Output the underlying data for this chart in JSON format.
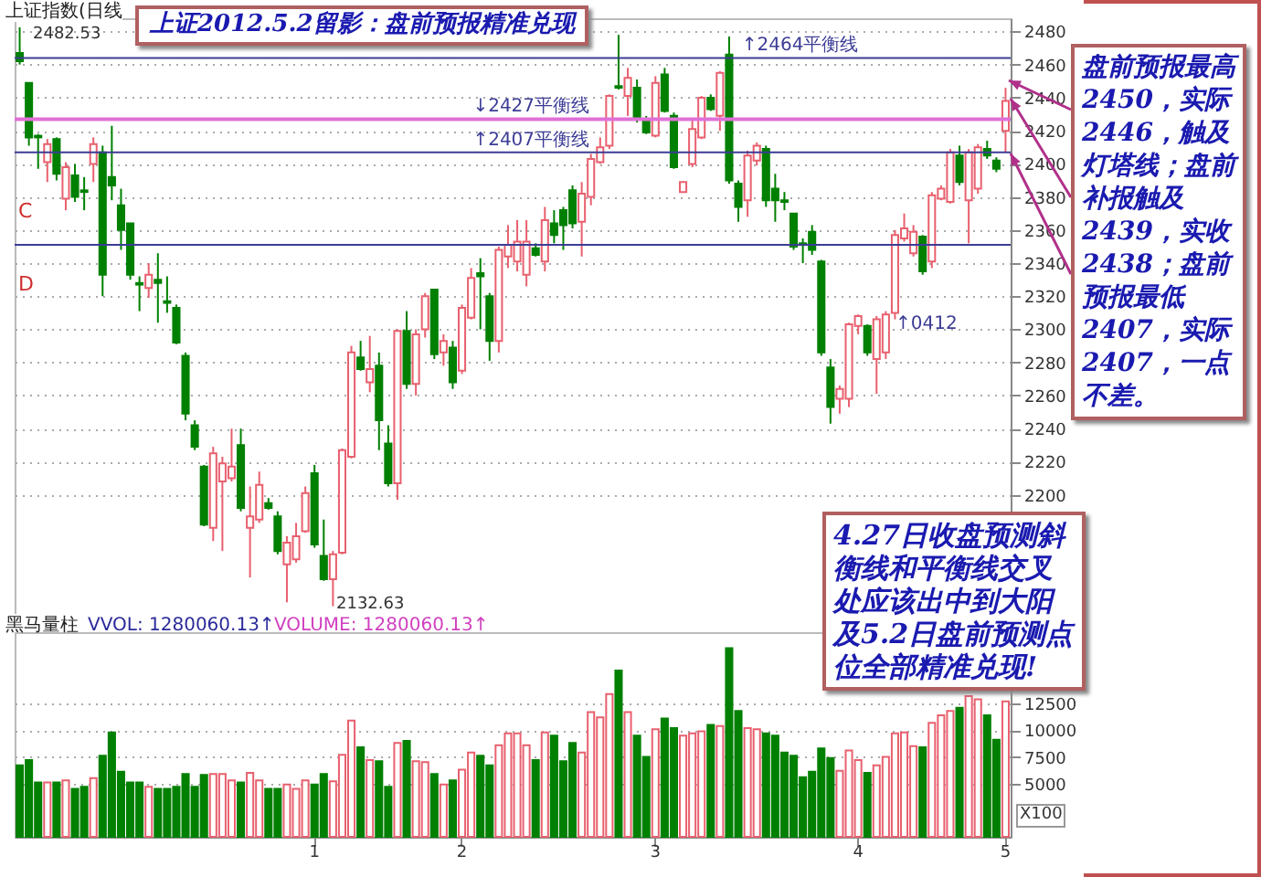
{
  "chart_data": [
    {
      "type": "candlestick",
      "title": "上证2012.5.2留影：盘前预报精准兑现",
      "subtitle": "上证指数(日线",
      "categories": [
        null,
        null,
        null,
        null,
        null,
        null,
        null,
        null,
        null,
        null,
        null,
        null,
        null,
        null,
        null,
        null,
        null,
        null,
        null,
        null,
        null,
        null,
        null,
        null,
        null,
        null,
        null,
        null,
        null,
        null,
        null,
        null,
        "1",
        null,
        null,
        null,
        null,
        null,
        null,
        null,
        null,
        null,
        null,
        null,
        null,
        null,
        null,
        null,
        "2",
        null,
        null,
        null,
        null,
        null,
        null,
        null,
        null,
        null,
        null,
        null,
        null,
        null,
        null,
        null,
        null,
        null,
        null,
        null,
        null,
        "3",
        null,
        null,
        null,
        null,
        null,
        null,
        null,
        null,
        null,
        null,
        null,
        null,
        null,
        null,
        null,
        null,
        null,
        null,
        null,
        null,
        null,
        "4",
        null,
        null,
        null,
        null,
        null,
        null,
        null,
        null,
        null,
        null,
        null,
        null,
        null,
        null,
        null,
        "5"
      ],
      "ohlc": [
        [
          2467,
          2482.53,
          2460,
          2462
        ],
        [
          2449,
          2449,
          2411,
          2416
        ],
        [
          2417,
          2418,
          2397,
          2416
        ],
        [
          2401,
          2415,
          2389,
          2412
        ],
        [
          2415,
          2416,
          2390,
          2394
        ],
        [
          2379,
          2401,
          2372,
          2398
        ],
        [
          2393,
          2400,
          2377,
          2380
        ],
        [
          2384,
          2392,
          2372,
          2383
        ],
        [
          2400,
          2416,
          2389,
          2412
        ],
        [
          2407,
          2411,
          2320,
          2333
        ],
        [
          2392,
          2423,
          2378,
          2387
        ],
        [
          2375,
          2385,
          2348,
          2360
        ],
        [
          2364,
          2364,
          2330,
          2333
        ],
        [
          2328,
          2332,
          2311,
          2327
        ],
        [
          2325,
          2340,
          2319,
          2333
        ],
        [
          2330,
          2346,
          2304,
          2328
        ],
        [
          2317,
          2332,
          2310,
          2316
        ],
        [
          2313,
          2315,
          2291,
          2292
        ],
        [
          2284,
          2286,
          2245,
          2249
        ],
        [
          2242,
          2245,
          2227,
          2229
        ],
        [
          2217,
          2218,
          2181,
          2182
        ],
        [
          2180,
          2229,
          2172,
          2225
        ],
        [
          2208,
          2223,
          2166,
          2219
        ],
        [
          2210,
          2240,
          2208,
          2217
        ],
        [
          2230,
          2240,
          2190,
          2192
        ],
        [
          2180,
          2205,
          2150,
          2187
        ],
        [
          2185,
          2214,
          2183,
          2206
        ],
        [
          2195,
          2198,
          2191,
          2192
        ],
        [
          2187,
          2190,
          2164,
          2166
        ],
        [
          2158,
          2175,
          2135,
          2171
        ],
        [
          2161,
          2183,
          2159,
          2175
        ],
        [
          2178,
          2205,
          2177,
          2201
        ],
        [
          2213,
          2218,
          2168,
          2170
        ],
        [
          2163,
          2185,
          2148,
          2149
        ],
        [
          2149,
          2166,
          2132.63,
          2164
        ],
        [
          2165,
          2228,
          2164,
          2227
        ],
        [
          2223,
          2290,
          2222,
          2286
        ],
        [
          2283,
          2293,
          2275,
          2276
        ],
        [
          2268,
          2296,
          2262,
          2276
        ],
        [
          2278,
          2286,
          2227,
          2245
        ],
        [
          2231,
          2242,
          2205,
          2207
        ],
        [
          2207,
          2300,
          2197,
          2299
        ],
        [
          2299,
          2311,
          2264,
          2267
        ],
        [
          2267,
          2300,
          2260,
          2297
        ],
        [
          2300,
          2322,
          2295,
          2320
        ],
        [
          2324,
          2324,
          2282,
          2285
        ],
        [
          2286,
          2297,
          2278,
          2293
        ],
        [
          2289,
          2293,
          2264,
          2268
        ],
        [
          2275,
          2315,
          2273,
          2313
        ],
        [
          2307,
          2337,
          2306,
          2331
        ],
        [
          2334,
          2343,
          2300,
          2332
        ],
        [
          2320,
          2322,
          2281,
          2293
        ],
        [
          2293,
          2350,
          2286,
          2348
        ],
        [
          2344,
          2363,
          2337,
          2351
        ],
        [
          2341,
          2366,
          2335,
          2353
        ],
        [
          2333,
          2366,
          2326,
          2353
        ],
        [
          2349,
          2352,
          2344,
          2345
        ],
        [
          2341,
          2374,
          2335,
          2366
        ],
        [
          2364,
          2372,
          2352,
          2357
        ],
        [
          2372,
          2374,
          2348,
          2363
        ],
        [
          2384,
          2387,
          2361,
          2364
        ],
        [
          2365,
          2389,
          2344,
          2382
        ],
        [
          2380,
          2406,
          2375,
          2403
        ],
        [
          2401,
          2416,
          2400,
          2410
        ],
        [
          2411,
          2442,
          2409,
          2441
        ],
        [
          2447,
          2478,
          2445,
          2446
        ],
        [
          2441,
          2458,
          2429,
          2452
        ],
        [
          2446,
          2451,
          2425,
          2427
        ],
        [
          2427,
          2429,
          2418,
          2419
        ],
        [
          2417,
          2453,
          2416,
          2449
        ],
        [
          2454,
          2458,
          2431,
          2432
        ],
        [
          2429,
          2431,
          2397,
          2398
        ],
        [
          2383,
          2389,
          2383,
          2389
        ],
        [
          2400,
          2427,
          2398,
          2421
        ],
        [
          2416,
          2441,
          2415,
          2440
        ],
        [
          2440,
          2442,
          2432,
          2433
        ],
        [
          2429,
          2456,
          2420,
          2455
        ],
        [
          2466,
          2477,
          2388,
          2390
        ],
        [
          2388,
          2390,
          2365,
          2374
        ],
        [
          2378,
          2408,
          2368,
          2405
        ],
        [
          2402,
          2413,
          2399,
          2411
        ],
        [
          2409,
          2411,
          2374,
          2378
        ],
        [
          2385,
          2394,
          2365,
          2378
        ],
        [
          2378,
          2383,
          2372,
          2377
        ],
        [
          2370,
          2370,
          2348,
          2350
        ],
        [
          2352,
          2355,
          2340,
          2351
        ],
        [
          2359,
          2363,
          2345,
          2348
        ],
        [
          2341,
          2342,
          2284,
          2286
        ],
        [
          2277,
          2282,
          2243,
          2253
        ],
        [
          2258,
          2266,
          2249,
          2264
        ],
        [
          2258,
          2304,
          2253,
          2303
        ],
        [
          2302,
          2309,
          2297,
          2308
        ],
        [
          2302,
          2303,
          2284,
          2286
        ],
        [
          2282,
          2308,
          2261,
          2306
        ],
        [
          2286,
          2311,
          2282,
          2309
        ],
        [
          2310,
          2360,
          2306,
          2357
        ],
        [
          2355,
          2370,
          2353,
          2361
        ],
        [
          2346,
          2363,
          2344,
          2359
        ],
        [
          2356,
          2357,
          2333,
          2335
        ],
        [
          2341,
          2383,
          2337,
          2381
        ],
        [
          2379,
          2387,
          2378,
          2385
        ],
        [
          2377,
          2409,
          2376,
          2407
        ],
        [
          2405,
          2411,
          2387,
          2389
        ],
        [
          2378,
          2409,
          2352,
          2407
        ],
        [
          2385,
          2412,
          2382,
          2410
        ],
        [
          2409,
          2414,
          2403,
          2405
        ],
        [
          2402,
          2404,
          2395,
          2397
        ],
        [
          2420,
          2446,
          2407,
          2438
        ]
      ],
      "colors": [
        "#008000",
        "#008000",
        "#008000",
        "#e8606e",
        "#008000",
        "#e8606e",
        "#008000",
        "#008000",
        "#e8606e",
        "#008000",
        "#008000",
        "#008000",
        "#008000",
        "#008000",
        "#e8606e",
        "#008000",
        "#008000",
        "#008000",
        "#008000",
        "#008000",
        "#008000",
        "#e8606e",
        "#e8606e",
        "#e8606e",
        "#008000",
        "#e8606e",
        "#e8606e",
        "#008000",
        "#008000",
        "#e8606e",
        "#e8606e",
        "#e8606e",
        "#008000",
        "#008000",
        "#e8606e",
        "#e8606e",
        "#e8606e",
        "#008000",
        "#e8606e",
        "#008000",
        "#008000",
        "#e8606e",
        "#008000",
        "#e8606e",
        "#e8606e",
        "#008000",
        "#e8606e",
        "#008000",
        "#e8606e",
        "#e8606e",
        "#008000",
        "#008000",
        "#e8606e",
        "#e8606e",
        "#e8606e",
        "#e8606e",
        "#008000",
        "#e8606e",
        "#008000",
        "#008000",
        "#008000",
        "#e8606e",
        "#e8606e",
        "#e8606e",
        "#e8606e",
        "#008000",
        "#e8606e",
        "#008000",
        "#008000",
        "#e8606e",
        "#008000",
        "#008000",
        "#e8606e",
        "#e8606e",
        "#e8606e",
        "#008000",
        "#e8606e",
        "#008000",
        "#008000",
        "#e8606e",
        "#e8606e",
        "#008000",
        "#008000",
        "#008000",
        "#008000",
        "#008000",
        "#008000",
        "#008000",
        "#008000",
        "#e8606e",
        "#e8606e",
        "#e8606e",
        "#008000",
        "#e8606e",
        "#e8606e",
        "#e8606e",
        "#e8606e",
        "#e8606e",
        "#008000",
        "#e8606e",
        "#e8606e",
        "#e8606e",
        "#008000",
        "#e8606e",
        "#e8606e",
        "#008000",
        "#008000",
        "#e8606e"
      ],
      "ylim": [
        2128,
        2488
      ],
      "yticks": [
        2200,
        2220,
        2240,
        2260,
        2280,
        2300,
        2320,
        2340,
        2360,
        2380,
        2400,
        2420,
        2440,
        2460,
        2480
      ],
      "grid": "y",
      "tick_labels": "y",
      "ref_lines": [
        {
          "axis": "y",
          "value": 2464,
          "label": "↑2464平衡线",
          "color": "#3c3c96"
        },
        {
          "axis": "y",
          "value": 2427,
          "label": "↓2427平衡线",
          "color": "#e070d8"
        },
        {
          "axis": "y",
          "value": 2407,
          "label": "↑2407平衡线",
          "color": "#3c3c96"
        },
        {
          "axis": "y",
          "value": 2351,
          "color": "#3c3c96"
        }
      ],
      "annotations": [
        "2482.53",
        "2132.63",
        "C",
        "D",
        "↑0412",
        "盘前预报最高2450，实际2446，触及灯塔线；盘前补报触及2439，实收2438；盘前预报最低2407，实际2407，一点不差。",
        "4.27日收盘预测斜衡线和平衡线交叉处应该出中到大阳及5.2日盘前预测点位全部精准兑现!"
      ]
    },
    {
      "type": "bar",
      "ylabel": "X100",
      "categories": [
        null,
        null,
        null,
        null,
        null,
        null,
        null,
        null,
        null,
        null,
        null,
        null,
        null,
        null,
        null,
        null,
        null,
        null,
        null,
        null,
        null,
        null,
        null,
        null,
        null,
        null,
        null,
        null,
        null,
        null,
        null,
        null,
        "1",
        null,
        null,
        null,
        null,
        null,
        null,
        null,
        null,
        null,
        null,
        null,
        null,
        null,
        null,
        null,
        "2",
        null,
        null,
        null,
        null,
        null,
        null,
        null,
        null,
        null,
        null,
        null,
        null,
        null,
        null,
        null,
        null,
        null,
        null,
        null,
        null,
        "3",
        null,
        null,
        null,
        null,
        null,
        null,
        null,
        null,
        null,
        null,
        null,
        null,
        null,
        null,
        null,
        null,
        null,
        null,
        null,
        null,
        null,
        "4",
        null,
        null,
        null,
        null,
        null,
        null,
        null,
        null,
        null,
        null,
        null,
        null,
        null,
        null,
        null,
        "5"
      ],
      "values": [
        6700,
        7200,
        5100,
        5100,
        5100,
        5300,
        4500,
        4700,
        5500,
        7600,
        9800,
        6100,
        5100,
        5100,
        4700,
        4500,
        4500,
        4700,
        5900,
        4700,
        5800,
        5900,
        5900,
        5300,
        5100,
        6000,
        5300,
        4500,
        4500,
        4900,
        4500,
        5300,
        4900,
        5900,
        5200,
        7700,
        10900,
        8400,
        7200,
        7100,
        4700,
        8800,
        9000,
        7100,
        7000,
        5900,
        4900,
        5300,
        6300,
        7900,
        7600,
        6700,
        8600,
        9700,
        9700,
        8600,
        7200,
        9800,
        9500,
        7100,
        8800,
        7900,
        11700,
        11200,
        13400,
        15600,
        11700,
        9500,
        7500,
        10100,
        11100,
        10200,
        9500,
        9700,
        9900,
        10500,
        10400,
        17700,
        11800,
        10200,
        10100,
        9700,
        9500,
        7900,
        7600,
        5600,
        6100,
        8300,
        7400,
        6200,
        8100,
        7200,
        6000,
        6700,
        7500,
        9700,
        9800,
        8500,
        8400,
        10700,
        11400,
        11800,
        12100,
        13200,
        12900,
        11400,
        9100,
        12700
      ],
      "colors": [
        "#008000",
        "#008000",
        "#008000",
        "#e8606e",
        "#008000",
        "#e8606e",
        "#008000",
        "#008000",
        "#e8606e",
        "#008000",
        "#008000",
        "#008000",
        "#008000",
        "#008000",
        "#e8606e",
        "#008000",
        "#008000",
        "#008000",
        "#008000",
        "#008000",
        "#008000",
        "#e8606e",
        "#e8606e",
        "#e8606e",
        "#008000",
        "#e8606e",
        "#e8606e",
        "#008000",
        "#008000",
        "#e8606e",
        "#e8606e",
        "#e8606e",
        "#008000",
        "#008000",
        "#e8606e",
        "#e8606e",
        "#e8606e",
        "#008000",
        "#e8606e",
        "#008000",
        "#008000",
        "#e8606e",
        "#008000",
        "#e8606e",
        "#e8606e",
        "#008000",
        "#e8606e",
        "#008000",
        "#e8606e",
        "#e8606e",
        "#008000",
        "#008000",
        "#e8606e",
        "#e8606e",
        "#e8606e",
        "#e8606e",
        "#008000",
        "#e8606e",
        "#008000",
        "#008000",
        "#008000",
        "#e8606e",
        "#e8606e",
        "#e8606e",
        "#e8606e",
        "#008000",
        "#e8606e",
        "#008000",
        "#008000",
        "#e8606e",
        "#008000",
        "#008000",
        "#e8606e",
        "#e8606e",
        "#e8606e",
        "#008000",
        "#e8606e",
        "#008000",
        "#008000",
        "#e8606e",
        "#e8606e",
        "#008000",
        "#008000",
        "#008000",
        "#008000",
        "#008000",
        "#008000",
        "#008000",
        "#008000",
        "#e8606e",
        "#e8606e",
        "#e8606e",
        "#008000",
        "#e8606e",
        "#e8606e",
        "#e8606e",
        "#e8606e",
        "#e8606e",
        "#008000",
        "#e8606e",
        "#e8606e",
        "#e8606e",
        "#008000",
        "#e8606e",
        "#e8606e",
        "#008000",
        "#008000",
        "#e8606e"
      ],
      "ylim": [
        0,
        19200
      ],
      "yticks": [
        5000,
        7500,
        10000,
        12500
      ],
      "grid": "y",
      "annotations": [
        "黑马量柱",
        "VVOL: 1280060.13↑",
        "VOLUME: 1280060.13↑"
      ]
    }
  ]
}
